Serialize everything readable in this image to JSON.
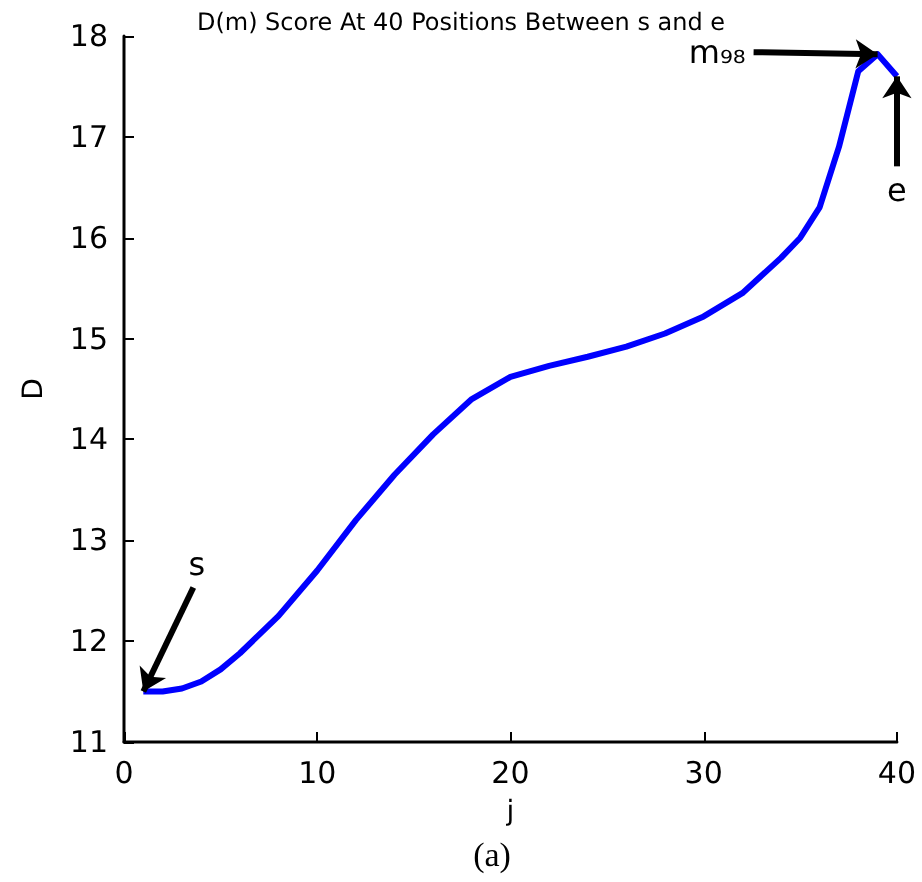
{
  "chart_data": {
    "type": "line",
    "title": "D(m) Score At 40 Positions Between s and e",
    "xlabel": "j",
    "ylabel": "D",
    "x": [
      1,
      2,
      3,
      4,
      5,
      6,
      8,
      10,
      12,
      14,
      16,
      18,
      20,
      22,
      24,
      26,
      28,
      30,
      32,
      34,
      35,
      36,
      37,
      38,
      39,
      40
    ],
    "series": [
      {
        "color": "#0000ff",
        "values": [
          11.5,
          11.5,
          11.53,
          11.6,
          11.72,
          11.88,
          12.25,
          12.7,
          13.2,
          13.65,
          14.05,
          14.4,
          14.62,
          14.73,
          14.82,
          14.92,
          15.05,
          15.22,
          15.45,
          15.8,
          16.0,
          16.3,
          16.9,
          17.65,
          17.82,
          17.6
        ]
      }
    ],
    "xlim": [
      0,
      40
    ],
    "xticks": [
      0,
      10,
      20,
      30,
      40
    ],
    "ylim": [
      11,
      18
    ],
    "yticks": [
      11,
      12,
      13,
      14,
      15,
      16,
      17,
      18
    ],
    "grid": false,
    "marker": "none",
    "line_style": "solid",
    "annotations": [
      {
        "text": "s",
        "x": 1,
        "y": 11.5
      },
      {
        "text": "m₉₈",
        "x": 39,
        "y": 17.82
      },
      {
        "text": "e",
        "x": 40,
        "y": 17.6
      },
      "(a)"
    ]
  }
}
